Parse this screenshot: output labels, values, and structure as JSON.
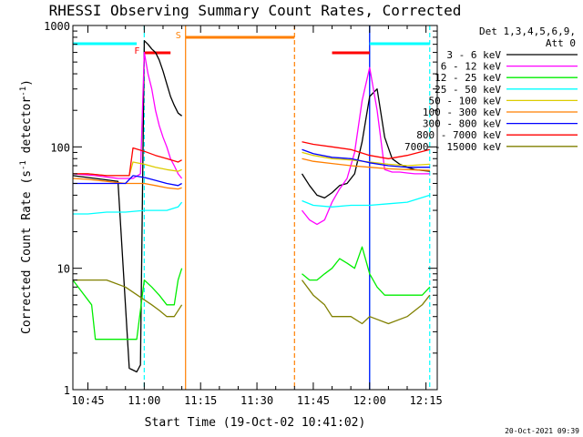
{
  "chart_data": {
    "type": "line",
    "title": "RHESSI Observing Summary Count Rates, Corrected",
    "xlabel": "Start Time (19-Oct-02 10:41:02)",
    "ylabel": "Corrected Count Rate (s⁻¹ detector⁻¹)",
    "ylabel_parts": [
      "Corrected Count Rate (s",
      "-1",
      " detector",
      "-1",
      ")"
    ],
    "y_scale": "log",
    "xlim": [
      "10:41",
      "12:18"
    ],
    "ylim": [
      1,
      1000
    ],
    "x_ticks": [
      "10:45",
      "11:00",
      "11:15",
      "11:30",
      "11:45",
      "12:00",
      "12:15"
    ],
    "y_ticks": [
      "1",
      "10",
      "100",
      "1000"
    ],
    "grid": false,
    "legend_position": "top-right",
    "legend_title": [
      "Det 1,3,4,5,6,9,",
      "Att 0"
    ],
    "timestamp": "20-Oct-2021 09:39",
    "series": [
      {
        "name": "3 - 6 keV",
        "color": "#000000",
        "x": [
          "10:41",
          "10:47",
          "10:53",
          "10:56",
          "10:58",
          "10:59",
          "11:00",
          "11:01",
          "11:02",
          "11:03",
          "11:04",
          "11:05",
          "11:06",
          "11:07",
          "11:08",
          "11:09",
          "11:10",
          null,
          "11:42",
          "11:44",
          "11:46",
          "11:48",
          "11:50",
          "11:52",
          "11:54",
          "11:56",
          "11:58",
          "12:00",
          "12:02",
          "12:04",
          "12:06",
          "12:08",
          "12:10",
          "12:12",
          "12:14",
          "12:16"
        ],
        "y": [
          58,
          55,
          52,
          1.5,
          1.4,
          1.6,
          750,
          700,
          640,
          600,
          520,
          420,
          330,
          260,
          220,
          190,
          180,
          null,
          60,
          48,
          40,
          38,
          42,
          48,
          50,
          60,
          110,
          260,
          300,
          120,
          80,
          72,
          68,
          65,
          64,
          63
        ]
      },
      {
        "name": "6 - 12 keV",
        "color": "#ff00ff",
        "x": [
          "10:41",
          "10:47",
          "10:53",
          "10:57",
          "10:59",
          "11:00",
          "11:01",
          "11:02",
          "11:03",
          "11:04",
          "11:05",
          "11:06",
          "11:07",
          "11:08",
          "11:09",
          "11:10",
          null,
          "11:42",
          "11:44",
          "11:46",
          "11:48",
          "11:50",
          "11:52",
          "11:54",
          "11:56",
          "11:58",
          "12:00",
          "12:02",
          "12:04",
          "12:06",
          "12:08",
          "12:10",
          "12:12",
          "12:14",
          "12:16"
        ],
        "y": [
          60,
          58,
          55,
          55,
          60,
          600,
          400,
          300,
          200,
          150,
          120,
          100,
          80,
          70,
          60,
          55,
          null,
          30,
          25,
          23,
          25,
          35,
          45,
          55,
          90,
          240,
          450,
          200,
          65,
          62,
          62,
          61,
          60,
          60,
          60
        ]
      },
      {
        "name": "12 - 25 keV",
        "color": "#00ee00",
        "x": [
          "10:41",
          "10:46",
          "10:47",
          "10:50",
          "10:55",
          "10:58",
          "11:00",
          "11:02",
          "11:04",
          "11:06",
          "11:08",
          "11:09",
          "11:10",
          null,
          "11:42",
          "11:44",
          "11:46",
          "11:48",
          "11:50",
          "11:52",
          "11:54",
          "11:56",
          "11:58",
          "12:00",
          "12:02",
          "12:04",
          "12:06",
          "12:08",
          "12:10",
          "12:12",
          "12:14",
          "12:16"
        ],
        "y": [
          8,
          5,
          2.6,
          2.6,
          2.6,
          2.6,
          8,
          7,
          6,
          5,
          5,
          8,
          10,
          null,
          9,
          8,
          8,
          9,
          10,
          12,
          11,
          10,
          15,
          9,
          7,
          6,
          6,
          6,
          6,
          6,
          6,
          7
        ]
      },
      {
        "name": "25 - 50 keV",
        "color": "#00ffff",
        "x": [
          "10:41",
          "10:45",
          "10:50",
          "10:55",
          "11:00",
          "11:03",
          "11:06",
          "11:09",
          "11:10",
          null,
          "11:42",
          "11:45",
          "11:50",
          "11:55",
          "12:00",
          "12:05",
          "12:10",
          "12:16"
        ],
        "y": [
          28,
          28,
          29,
          29,
          30,
          30,
          30,
          32,
          35,
          null,
          36,
          33,
          32,
          33,
          33,
          34,
          35,
          40
        ]
      },
      {
        "name": "50 - 100 keV",
        "color": "#ddcc00",
        "x": [
          "10:41",
          "10:45",
          "10:50",
          "10:56",
          "10:57",
          "11:00",
          "11:03",
          "11:06",
          "11:09",
          "11:10",
          null,
          "11:42",
          "11:45",
          "11:50",
          "11:55",
          "12:00",
          "12:05",
          "12:10",
          "12:16"
        ],
        "y": [
          60,
          60,
          58,
          58,
          75,
          72,
          68,
          65,
          63,
          65,
          null,
          90,
          85,
          80,
          78,
          75,
          72,
          70,
          72
        ]
      },
      {
        "name": "100 - 300 keV",
        "color": "#ff7f00",
        "x": [
          "10:41",
          "10:45",
          "10:50",
          "10:55",
          "11:00",
          "11:03",
          "11:06",
          "11:09",
          "11:10",
          null,
          "11:42",
          "11:45",
          "11:50",
          "11:55",
          "12:00",
          "12:05",
          "12:10",
          "12:16"
        ],
        "y": [
          55,
          54,
          52,
          50,
          50,
          48,
          46,
          45,
          46,
          null,
          80,
          76,
          73,
          70,
          68,
          66,
          65,
          64
        ]
      },
      {
        "name": "300 - 800 keV",
        "color": "#0000ff",
        "x": [
          "10:41",
          "10:45",
          "10:50",
          "10:55",
          "10:57",
          "11:00",
          "11:03",
          "11:06",
          "11:09",
          "11:10",
          null,
          "11:42",
          "11:45",
          "11:50",
          "11:55",
          "12:00",
          "12:05",
          "12:10",
          "12:16"
        ],
        "y": [
          50,
          50,
          50,
          50,
          58,
          56,
          53,
          50,
          48,
          50,
          null,
          95,
          88,
          82,
          80,
          74,
          70,
          68,
          68
        ]
      },
      {
        "name": "800 - 7000 keV",
        "color": "#ff0000",
        "x": [
          "10:41",
          "10:45",
          "10:50",
          "10:56",
          "10:57",
          "11:00",
          "11:03",
          "11:06",
          "11:09",
          "11:10",
          null,
          "11:42",
          "11:45",
          "11:50",
          "11:55",
          "12:00",
          "12:05",
          "12:10",
          "12:16"
        ],
        "y": [
          60,
          60,
          58,
          58,
          98,
          92,
          85,
          80,
          75,
          78,
          null,
          110,
          105,
          100,
          95,
          85,
          80,
          85,
          95
        ]
      },
      {
        "name": "7000 - 15000 keV",
        "color": "#808000",
        "x": [
          "10:41",
          "10:45",
          "10:50",
          "10:55",
          "11:00",
          "11:02",
          "11:04",
          "11:06",
          "11:08",
          "11:10",
          null,
          "11:42",
          "11:45",
          "11:48",
          "11:50",
          "11:55",
          "11:58",
          "12:00",
          "12:05",
          "12:10",
          "12:14",
          "12:16"
        ],
        "y": [
          8,
          8,
          8,
          7,
          5.5,
          5,
          4.5,
          4,
          4,
          5,
          null,
          8,
          6,
          5,
          4,
          4,
          3.5,
          4,
          3.5,
          4,
          5,
          6
        ]
      }
    ],
    "reference_lines": [
      {
        "time": "11:00",
        "color": "#00ffff",
        "style": "dashed"
      },
      {
        "time": "11:11",
        "color": "#ff7f00",
        "style": "solid"
      },
      {
        "time": "11:40",
        "color": "#ff7f00",
        "style": "dashed"
      },
      {
        "time": "12:00",
        "color": "#00ffff",
        "style": "solid"
      },
      {
        "time": "12:00",
        "color": "#0000ff",
        "style": "solid"
      },
      {
        "time": "12:16",
        "color": "#00ffff",
        "style": "dashed"
      }
    ],
    "interval_bars": [
      {
        "color": "#00ffff",
        "start": "10:41",
        "end": "10:58",
        "label": ""
      },
      {
        "color": "#ff0000",
        "start": "11:00",
        "end": "11:07",
        "label": "F"
      },
      {
        "color": "#ff7f00",
        "start": "11:11",
        "end": "11:40",
        "label": "S"
      },
      {
        "color": "#ff0000",
        "start": "11:50",
        "end": "12:00",
        "label": ""
      },
      {
        "color": "#00ffff",
        "start": "12:00",
        "end": "12:16",
        "label": ""
      }
    ]
  }
}
